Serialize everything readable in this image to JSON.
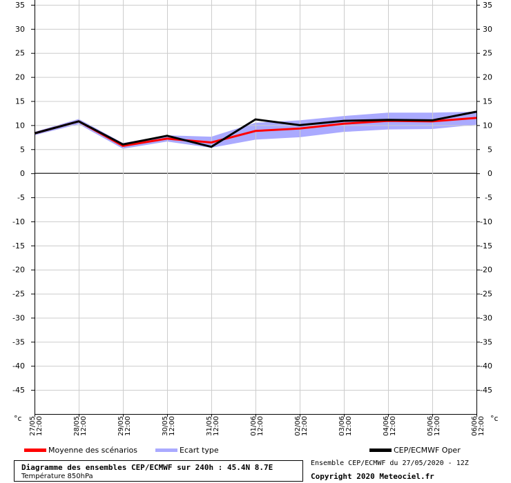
{
  "title": "Diagramme des ensembles CEP/ECMWF sur 240h : 45.4N 8.7E",
  "subtitle": "Température 850hPa",
  "run_info": "Ensemble CEP/ECMWF du 27/05/2020 - 12Z",
  "copyright": "Copyright 2020 Meteociel.fr",
  "unit_left": "°c",
  "unit_right": "°c",
  "colors": {
    "mean": "#ff0000",
    "spread": "#aaaaff",
    "oper": "#000000"
  },
  "legend": {
    "mean": "Moyenne des scénarios",
    "spread": "Ecart type",
    "oper": "CEP/ECMWF Oper"
  },
  "chart_data": {
    "type": "line",
    "title": "Diagramme des ensembles CEP/ECMWF sur 240h : 45.4N 8.7E",
    "subtitle": "Température 850hPa",
    "ylabel": "°c",
    "ylim": [
      -45,
      35
    ],
    "yticks": [
      35,
      30,
      25,
      20,
      15,
      10,
      5,
      0,
      -5,
      -10,
      -15,
      -20,
      -25,
      -30,
      -35,
      -40,
      -45
    ],
    "grid": true,
    "legend_position": "bottom",
    "categories": [
      [
        "27/05",
        "12:00"
      ],
      [
        "28/05",
        "12:00"
      ],
      [
        "29/05",
        "12:00"
      ],
      [
        "30/05",
        "12:00"
      ],
      [
        "31/05",
        "12:00"
      ],
      [
        "01/06",
        "12:00"
      ],
      [
        "02/06",
        "12:00"
      ],
      [
        "03/06",
        "12:00"
      ],
      [
        "04/06",
        "12:00"
      ],
      [
        "05/06",
        "12:00"
      ],
      [
        "06/06",
        "12:00"
      ]
    ],
    "series": [
      {
        "name": "Moyenne des scénarios",
        "values": [
          8.3,
          10.8,
          5.7,
          7.2,
          6.4,
          8.8,
          9.3,
          10.3,
          10.9,
          10.8,
          11.5
        ]
      },
      {
        "name": "CEP/ECMWF Oper",
        "values": [
          8.3,
          10.8,
          6.0,
          7.8,
          5.5,
          11.2,
          10.0,
          10.9,
          11.1,
          11.0,
          12.8
        ]
      }
    ],
    "spread": {
      "name": "Ecart type",
      "upper": [
        8.6,
        11.3,
        6.3,
        7.9,
        7.6,
        10.5,
        11.0,
        11.9,
        12.6,
        12.6,
        12.8
      ],
      "lower": [
        7.9,
        10.2,
        5.1,
        6.6,
        5.3,
        7.0,
        7.5,
        8.6,
        9.1,
        9.2,
        10.1
      ]
    }
  }
}
